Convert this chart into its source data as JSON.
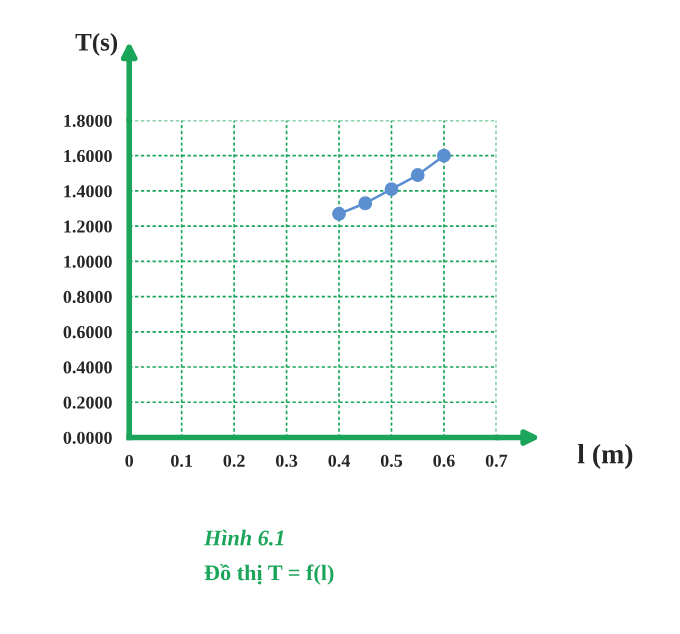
{
  "chart_data": {
    "type": "line",
    "xlabel": "l (m)",
    "ylabel": "T(s)",
    "x": [
      0.4,
      0.45,
      0.5,
      0.55,
      0.6
    ],
    "series": [
      {
        "color": "#5b8fd0",
        "values": [
          1.27,
          1.33,
          1.41,
          1.49,
          1.6
        ]
      }
    ],
    "xlim": [
      0,
      0.7
    ],
    "ylim": [
      0,
      1.8
    ],
    "xticks": [
      0,
      0.1,
      0.2,
      0.3,
      0.4,
      0.5,
      0.6,
      0.7
    ],
    "yticks": [
      {
        "value": 0,
        "label": "0.0000"
      },
      {
        "value": 0.2,
        "label": "0.2000"
      },
      {
        "value": 0.4,
        "label": "0.4000"
      },
      {
        "value": 0.6,
        "label": "0.6000"
      },
      {
        "value": 0.8,
        "label": "0.8000"
      },
      {
        "value": 1.0,
        "label": "1.0000"
      },
      {
        "value": 1.2,
        "label": "1.2000"
      },
      {
        "value": 1.4,
        "label": "1.4000"
      },
      {
        "value": 1.6,
        "label": "1.6000"
      },
      {
        "value": 1.8,
        "label": "1.8000"
      }
    ],
    "grid": true,
    "marker": "circle",
    "line_style": "solid",
    "legend": false,
    "annotations": [
      "Hình 6.1",
      "Đồ thị T = f(l)"
    ]
  }
}
